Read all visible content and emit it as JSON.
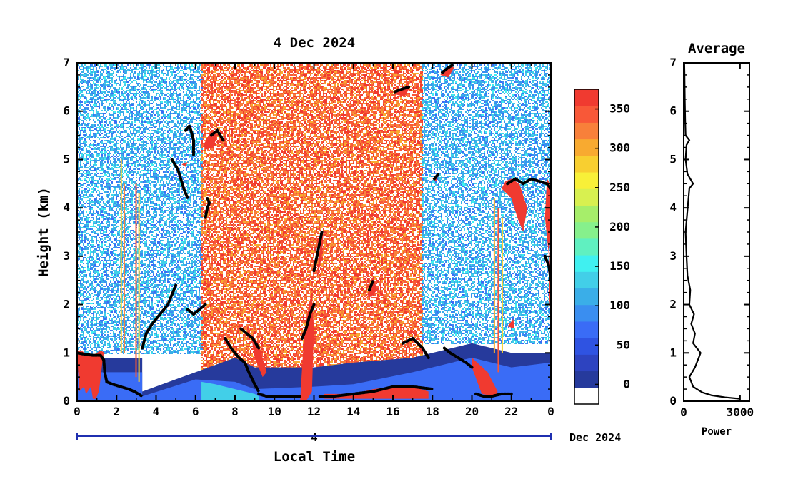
{
  "chart_data": [
    {
      "type": "heatmap",
      "title": "4 Dec 2024",
      "xlabel": "Local Time",
      "ylabel": "Height (km)",
      "x_ticks": [
        "0",
        "2",
        "4",
        "6",
        "8",
        "10",
        "12",
        "14",
        "16",
        "18",
        "20",
        "22",
        "0"
      ],
      "xlim": [
        0,
        24
      ],
      "y_ticks": [
        "0",
        "1",
        "2",
        "3",
        "4",
        "5",
        "6",
        "7"
      ],
      "ylim": [
        0,
        7
      ],
      "date_axis": {
        "day_label": "4",
        "month_label": "Dec 2024"
      },
      "colorbar": {
        "ticks": [
          "0",
          "50",
          "100",
          "150",
          "200",
          "250",
          "300",
          "350"
        ],
        "range": [
          -25,
          375
        ],
        "colors": [
          "#ffffff",
          "#263a9c",
          "#2d43c0",
          "#2f53e2",
          "#3a6cf6",
          "#3a8ef0",
          "#3aaee8",
          "#42cfe8",
          "#40f0f0",
          "#60f0c0",
          "#86f08c",
          "#a6ee6a",
          "#d8f050",
          "#f8f038",
          "#f8cf30",
          "#f8aa30",
          "#f8803a",
          "#f85838",
          "#f03a30"
        ]
      },
      "layers": [
        {
          "value": 10,
          "x": [
            0,
            3.3,
            3.3,
            6,
            8,
            9,
            12,
            14,
            17,
            19,
            20,
            22,
            24
          ],
          "top": [
            0.9,
            0.9,
            0.2,
            0.6,
            0.9,
            0.7,
            0.7,
            0.8,
            0.9,
            1.1,
            1.2,
            1.0,
            1.0
          ]
        },
        {
          "value": 60,
          "x": [
            0,
            3.3,
            3.3,
            6,
            8,
            9,
            12,
            14,
            17,
            19,
            20,
            22,
            24
          ],
          "top": [
            0.6,
            0.6,
            0.1,
            0.45,
            0.4,
            0.25,
            0.3,
            0.35,
            0.6,
            0.8,
            0.9,
            0.7,
            0.8
          ]
        },
        {
          "value": 130,
          "x": [
            6.3,
            7,
            8,
            9,
            9.2
          ],
          "top": [
            0.4,
            0.35,
            0.25,
            0.15,
            0.1
          ]
        }
      ],
      "noise_regions": [
        {
          "x": [
            0,
            6.3
          ],
          "y": [
            1.0,
            7
          ],
          "value_range": [
            70,
            150
          ],
          "density": 0.55
        },
        {
          "x": [
            6.3,
            17.5
          ],
          "y": [
            0.4,
            7
          ],
          "value_range": [
            300,
            375
          ],
          "density": 0.7
        },
        {
          "x": [
            17.5,
            24
          ],
          "y": [
            1.2,
            7
          ],
          "value_range": [
            70,
            150
          ],
          "density": 0.55
        }
      ],
      "streaks": [
        {
          "x": 2.2,
          "y": [
            1.0,
            5.0
          ],
          "value": 280
        },
        {
          "x": 2.35,
          "y": [
            1.0,
            4.5
          ],
          "value": 320
        },
        {
          "x": 2.95,
          "y": [
            0.5,
            4.5
          ],
          "value": 340
        },
        {
          "x": 3.1,
          "y": [
            0.4,
            4.3
          ],
          "value": 290
        },
        {
          "x": 21.1,
          "y": [
            1.0,
            4.2
          ],
          "value": 310
        },
        {
          "x": 21.3,
          "y": [
            0.6,
            4.0
          ],
          "value": 340
        },
        {
          "x": 21.5,
          "y": [
            1.0,
            3.8
          ],
          "value": 280
        }
      ],
      "strong_echoes": [
        {
          "x": [
            0,
            0.1,
            0.35,
            0.45,
            0.7,
            0.8,
            0.95,
            1.1,
            1.2,
            1.3,
            1.4,
            1.2,
            1.0,
            0.8,
            0.6,
            0.4,
            0.2,
            0
          ],
          "y": [
            1.05,
            0.2,
            0.3,
            0.15,
            0.3,
            0.05,
            0.05,
            0.2,
            0.5,
            0.9,
            1.0,
            1.05,
            1.0,
            0.95,
            1.0,
            1.0,
            1.05,
            1.05
          ]
        },
        {
          "x": [
            11.3,
            11.6,
            11.9,
            12.0,
            11.9,
            11.8,
            11.5,
            11.3
          ],
          "y": [
            0.0,
            0.0,
            0.2,
            1.5,
            2.2,
            2.1,
            1.4,
            0.0
          ]
        },
        {
          "x": [
            12.15,
            12.35,
            12.5,
            12.4,
            12.2
          ],
          "y": [
            2.6,
            3.3,
            3.6,
            3.0,
            2.6
          ]
        },
        {
          "x": [
            12.5,
            13,
            14,
            15,
            16,
            17,
            17.8,
            17.8,
            17,
            16,
            15,
            14,
            13,
            12.5
          ],
          "y": [
            0.15,
            0.15,
            0.15,
            0.25,
            0.3,
            0.3,
            0.2,
            0.05,
            0.05,
            0.05,
            0.05,
            0.05,
            0.05,
            0.05
          ]
        },
        {
          "x": [
            8.8,
            9.2,
            9.6,
            9.4,
            9.0,
            8.8
          ],
          "y": [
            1.4,
            1.2,
            0.6,
            0.5,
            0.9,
            1.4
          ]
        },
        {
          "x": [
            14.7,
            15.0,
            15.2,
            14.9,
            14.7
          ],
          "y": [
            2.2,
            2.6,
            2.3,
            2.15,
            2.2
          ]
        },
        {
          "x": [
            16.1,
            16.5,
            16.8,
            16.6,
            16.1
          ],
          "y": [
            6.35,
            6.5,
            6.45,
            6.3,
            6.35
          ]
        },
        {
          "x": [
            18.4,
            18.9,
            19.1,
            18.8,
            18.4
          ],
          "y": [
            6.75,
            6.95,
            6.9,
            6.7,
            6.75
          ]
        },
        {
          "x": [
            5.3,
            5.6,
            5.5,
            5.3
          ],
          "y": [
            4.9,
            4.95,
            4.85,
            4.9
          ]
        },
        {
          "x": [
            6.4,
            6.8,
            7.1,
            6.9,
            6.5,
            6.4
          ],
          "y": [
            5.3,
            5.6,
            5.5,
            5.25,
            5.2,
            5.3
          ]
        },
        {
          "x": [
            18.0,
            18.3,
            18.2,
            18.0
          ],
          "y": [
            4.6,
            4.7,
            4.55,
            4.6
          ]
        },
        {
          "x": [
            21.5,
            22,
            22.3,
            22.6,
            22.8,
            22.4,
            22.0,
            21.7,
            21.5
          ],
          "y": [
            4.4,
            4.2,
            3.8,
            3.5,
            4.0,
            4.5,
            4.6,
            4.55,
            4.4
          ]
        },
        {
          "x": [
            23.8,
            24,
            24,
            23.9,
            23.7,
            23.8
          ],
          "y": [
            4.6,
            4.5,
            3.5,
            3.0,
            3.8,
            4.6
          ]
        },
        {
          "x": [
            23.95,
            24,
            24,
            23.9
          ],
          "y": [
            3.1,
            3.0,
            1.8,
            2.2
          ]
        },
        {
          "x": [
            20.0,
            20.5,
            21.2,
            21.3,
            20.8,
            20.0
          ],
          "y": [
            0.7,
            0.15,
            0.1,
            0.2,
            0.6,
            0.9
          ]
        },
        {
          "x": [
            21.8,
            22.1,
            22.15,
            21.8
          ],
          "y": [
            1.55,
            1.7,
            1.5,
            1.55
          ]
        }
      ],
      "black_traces": [
        {
          "x": [
            0,
            0.4,
            0.8,
            1.2,
            1.35
          ],
          "y": [
            1.0,
            0.97,
            0.95,
            0.95,
            0.85
          ]
        },
        {
          "x": [
            1.35,
            1.4,
            1.5,
            1.8,
            2.2,
            2.6,
            2.9,
            3.1,
            3.3
          ],
          "y": [
            0.85,
            0.6,
            0.4,
            0.35,
            0.3,
            0.25,
            0.2,
            0.15,
            0.1
          ]
        },
        {
          "x": [
            3.3,
            3.5,
            3.8,
            4.2,
            4.6,
            4.9,
            5.0
          ],
          "y": [
            1.1,
            1.4,
            1.6,
            1.8,
            2.0,
            2.3,
            2.4
          ]
        },
        {
          "x": [
            5.6,
            5.9,
            6.2,
            6.5
          ],
          "y": [
            1.9,
            1.8,
            1.9,
            2.0
          ]
        },
        {
          "x": [
            4.8,
            5.1,
            5.4,
            5.6
          ],
          "y": [
            5.0,
            4.8,
            4.4,
            4.2
          ]
        },
        {
          "x": [
            5.5,
            5.7,
            5.9,
            5.9
          ],
          "y": [
            5.6,
            5.7,
            5.4,
            5.1
          ]
        },
        {
          "x": [
            6.5,
            6.6,
            6.7,
            6.6
          ],
          "y": [
            3.8,
            4.0,
            4.1,
            4.2
          ]
        },
        {
          "x": [
            6.8,
            7.1,
            7.4
          ],
          "y": [
            5.5,
            5.6,
            5.4
          ]
        },
        {
          "x": [
            7.5,
            7.8,
            8.0,
            8.2,
            8.5,
            8.7,
            9.0,
            9.2
          ],
          "y": [
            1.3,
            1.1,
            1.0,
            0.9,
            0.8,
            0.6,
            0.35,
            0.2
          ]
        },
        {
          "x": [
            8.3,
            8.6,
            8.9,
            9.2
          ],
          "y": [
            1.5,
            1.4,
            1.3,
            1.1
          ]
        },
        {
          "x": [
            9.2,
            9.6,
            10.0,
            10.5,
            11.0,
            11.3
          ],
          "y": [
            0.15,
            0.1,
            0.1,
            0.1,
            0.1,
            0.1
          ]
        },
        {
          "x": [
            11.4,
            11.6,
            11.8,
            12.0
          ],
          "y": [
            1.3,
            1.5,
            1.8,
            2.0
          ]
        },
        {
          "x": [
            12.0,
            12.2,
            12.4
          ],
          "y": [
            2.7,
            3.1,
            3.5
          ]
        },
        {
          "x": [
            12.3,
            13,
            14,
            15,
            16,
            17,
            18
          ],
          "y": [
            0.1,
            0.1,
            0.15,
            0.2,
            0.3,
            0.3,
            0.25
          ]
        },
        {
          "x": [
            16.5,
            17,
            17.5,
            17.8
          ],
          "y": [
            1.2,
            1.3,
            1.1,
            0.9
          ]
        },
        {
          "x": [
            18.6,
            18.9,
            19.3,
            19.7,
            20.0
          ],
          "y": [
            1.1,
            1.0,
            0.9,
            0.8,
            0.7
          ]
        },
        {
          "x": [
            20.2,
            20.6,
            21.0,
            21.5,
            22.0
          ],
          "y": [
            0.15,
            0.1,
            0.1,
            0.15,
            0.15
          ]
        },
        {
          "x": [
            21.8,
            22.2,
            22.6,
            23.0,
            23.4,
            23.8,
            24.0
          ],
          "y": [
            4.5,
            4.6,
            4.5,
            4.6,
            4.55,
            4.5,
            4.4
          ]
        },
        {
          "x": [
            23.7,
            23.9,
            24.0
          ],
          "y": [
            3.0,
            2.8,
            2.5
          ]
        },
        {
          "x": [
            16.1,
            16.4,
            16.8
          ],
          "y": [
            6.4,
            6.45,
            6.5
          ]
        },
        {
          "x": [
            18.5,
            18.8,
            19.0
          ],
          "y": [
            6.8,
            6.9,
            6.95
          ]
        },
        {
          "x": [
            18.1,
            18.3
          ],
          "y": [
            4.6,
            4.7
          ]
        },
        {
          "x": [
            14.8,
            15.0
          ],
          "y": [
            2.3,
            2.5
          ]
        }
      ]
    },
    {
      "type": "line",
      "title": "Average",
      "xlabel": "Power",
      "ylabel": "",
      "x_ticks": [
        "0",
        "3000"
      ],
      "xlim": [
        0,
        3500
      ],
      "ylim": [
        0,
        7
      ],
      "series": [
        {
          "x": [
            3000,
            2200,
            1500,
            1000,
            700,
            500,
            400,
            350,
            300,
            600,
            800,
            900,
            700,
            500,
            600,
            400,
            550,
            300,
            350,
            200,
            150,
            100,
            300,
            500,
            200,
            100,
            150,
            300,
            200,
            100,
            80,
            60,
            50,
            40,
            30
          ],
          "y": [
            0.05,
            0.08,
            0.12,
            0.18,
            0.25,
            0.3,
            0.4,
            0.45,
            0.5,
            0.7,
            0.9,
            1.0,
            1.1,
            1.2,
            1.4,
            1.6,
            1.8,
            2.0,
            2.3,
            2.6,
            3.0,
            3.5,
            4.4,
            4.5,
            4.7,
            5.0,
            5.3,
            5.4,
            5.45,
            5.5,
            5.8,
            6.2,
            6.5,
            6.8,
            7.0
          ]
        }
      ]
    }
  ]
}
